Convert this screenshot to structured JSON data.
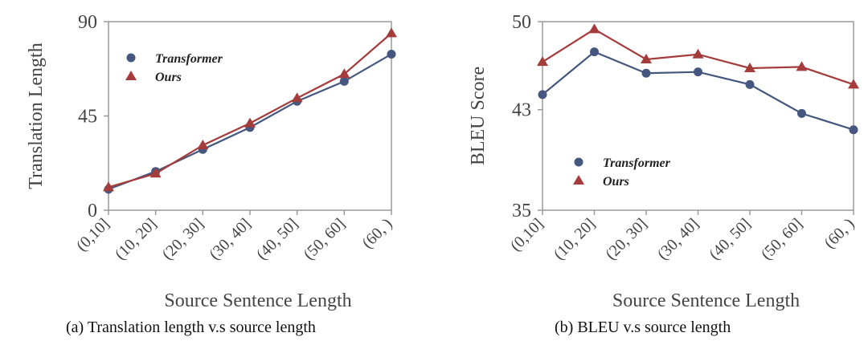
{
  "colors": {
    "transformer": "#45577f",
    "ours": "#a43c3c",
    "axis": "#9a9a9a"
  },
  "chart_data": [
    {
      "id": "a",
      "type": "line",
      "caption": "(a) Translation length v.s source length",
      "xlabel": "Source Sentence Length",
      "ylabel": "Translation Length",
      "categories": [
        "(0,10]",
        "(10, 20]",
        "(20, 30]",
        "(30, 40]",
        "(40, 50]",
        "(50, 60]",
        "(60, )"
      ],
      "ylim": [
        0,
        90
      ],
      "yticks": [
        0,
        45,
        90
      ],
      "legend_position": "top-left",
      "series": [
        {
          "name": "Transformer",
          "marker": "circle",
          "values": [
            10,
            18.5,
            29,
            39.5,
            52,
            61.5,
            74.5
          ]
        },
        {
          "name": "Ours",
          "marker": "triangle",
          "values": [
            11,
            17.5,
            31,
            41.5,
            53.5,
            65,
            84.5
          ]
        }
      ]
    },
    {
      "id": "b",
      "type": "line",
      "caption": "(b) BLEU v.s source length",
      "xlabel": "Source Sentence Length",
      "ylabel": "BLEU Score",
      "categories": [
        "(0,10]",
        "(10, 20]",
        "(20, 30]",
        "(30, 40]",
        "(40, 50]",
        "(50, 60]",
        "(60, )"
      ],
      "ylim": [
        35,
        50
      ],
      "yticks": [
        35,
        43,
        50
      ],
      "legend_position": "bottom-left",
      "series": [
        {
          "name": "Transformer",
          "marker": "circle",
          "values": [
            44.2,
            47.6,
            45.9,
            46.0,
            45.0,
            42.7,
            41.4
          ]
        },
        {
          "name": "Ours",
          "marker": "triangle",
          "values": [
            46.8,
            49.4,
            47.0,
            47.4,
            46.3,
            46.4,
            45.0
          ]
        }
      ]
    }
  ]
}
